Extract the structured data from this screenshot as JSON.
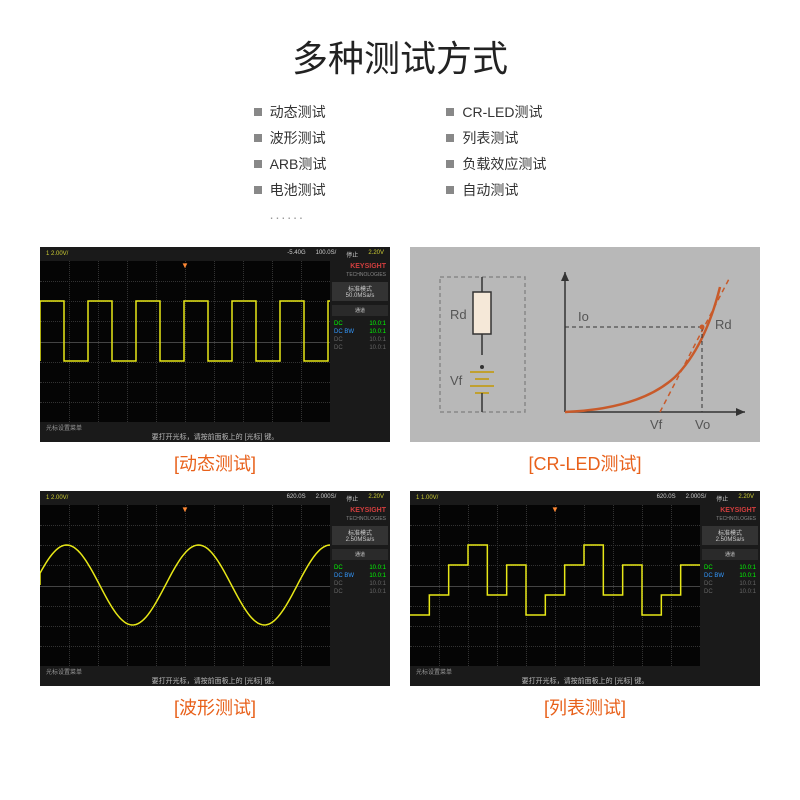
{
  "title": "多种测试方式",
  "features_left": [
    "动态测试",
    "波形测试",
    "ARB测试",
    "电池测试",
    "......"
  ],
  "features_right": [
    "CR-LED测试",
    "列表测试",
    "负载效应测试",
    "自动测试"
  ],
  "panels": [
    {
      "label": "[动态测试]",
      "type": "scope",
      "top": "1  2.00V/",
      "top_right1": "-5.40G",
      "top_right2": "100.0S/",
      "top_right3": "停止",
      "top_right4": "2.20V",
      "mode_title": "标准模式",
      "mode_val": "50.0MSa/s",
      "hint": "要打开光标，请按前面板上的 [光标] 键。",
      "info": "光标设置菜单",
      "trace": "square",
      "channels": [
        [
          "DC",
          "10.0:1",
          ""
        ],
        [
          "DC BW",
          "10.0:1",
          "bw"
        ],
        [
          "DC",
          "10.0:1",
          "dim"
        ],
        [
          "DC",
          "10.0:1",
          "dim"
        ]
      ]
    },
    {
      "label": "[CR-LED测试]",
      "type": "diagram"
    },
    {
      "label": "[波形测试]",
      "type": "scope",
      "top": "1  2.00V/",
      "top_right1": "620.0S",
      "top_right2": "2.000S/",
      "top_right3": "停止",
      "top_right4": "2.20V",
      "mode_title": "标准模式",
      "mode_val": "2.50MSa/s",
      "hint": "要打开光标，请按前面板上的 [光标] 键。",
      "info": "光标设置菜单",
      "trace": "sine",
      "channels": [
        [
          "DC",
          "10.0:1",
          ""
        ],
        [
          "DC BW",
          "10.0:1",
          "bw"
        ],
        [
          "DC",
          "10.0:1",
          "dim"
        ],
        [
          "DC",
          "10.0:1",
          "dim"
        ]
      ]
    },
    {
      "label": "[列表测试]",
      "type": "scope",
      "top": "1  1.00V/",
      "top_right1": "620.0S",
      "top_right2": "2.000S/",
      "top_right3": "停止",
      "top_right4": "2.20V",
      "mode_title": "标准模式",
      "mode_val": "2.50MSa/s",
      "hint": "要打开光标，请按前面板上的 [光标] 键。",
      "info": "光标设置菜单",
      "trace": "step",
      "channels": [
        [
          "DC",
          "10.0:1",
          ""
        ],
        [
          "DC BW",
          "10.0:1",
          "bw"
        ],
        [
          "DC",
          "10.0:1",
          "dim"
        ],
        [
          "DC",
          "10.0:1",
          "dim"
        ]
      ]
    }
  ],
  "colors": {
    "trace": "#e8e817",
    "accent": "#e8611b",
    "scope_bg": "#050505",
    "scope_grid": "#333333",
    "keysight_red": "#d13e3e",
    "diagram_bg": "#b8b8b8",
    "diagram_curve": "#c85a2a",
    "diagram_text": "#555555"
  },
  "diagram": {
    "labels": {
      "Rd": "Rd",
      "Vf": "Vf",
      "Io": "Io",
      "Vo": "Vo",
      "Rd2": "Rd"
    }
  },
  "keysight": "KEYSIGHT",
  "keysight_sub": "TECHNOLOGIES"
}
